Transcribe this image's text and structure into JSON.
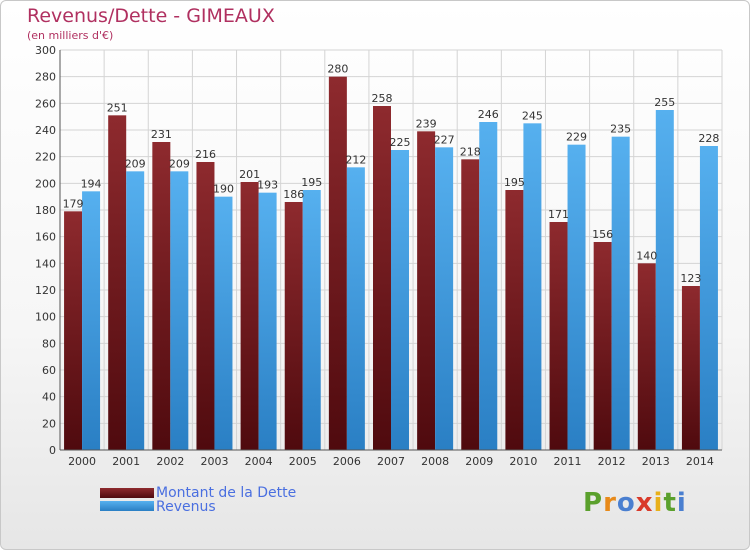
{
  "header": {
    "title": "Revenus/Dette - GIMEAUX",
    "subtitle": "(en milliers d'€)"
  },
  "legend": {
    "items": [
      {
        "label": "Montant de la Dette"
      },
      {
        "label": "Revenus"
      }
    ]
  },
  "logo": {
    "text": "Proxiti",
    "letters": [
      "P",
      "r",
      "o",
      "x",
      "i",
      "t",
      "i"
    ],
    "colors": [
      "#5aa02c",
      "#e88a1a",
      "#4a7fd0",
      "#d93a2a",
      "#e8b01a",
      "#5aa02c",
      "#4a7fd0"
    ]
  },
  "chart_data": {
    "type": "bar",
    "categories": [
      "2000",
      "2001",
      "2002",
      "2003",
      "2004",
      "2005",
      "2006",
      "2007",
      "2008",
      "2009",
      "2010",
      "2011",
      "2012",
      "2013",
      "2014"
    ],
    "series": [
      {
        "name": "Montant de la Dette",
        "color": "#7a1a1e",
        "values": [
          179,
          251,
          231,
          216,
          201,
          186,
          280,
          258,
          239,
          218,
          195,
          171,
          156,
          140,
          123
        ]
      },
      {
        "name": "Revenus",
        "color": "#3d9be0",
        "values": [
          194,
          209,
          209,
          190,
          193,
          195,
          212,
          225,
          227,
          246,
          245,
          229,
          235,
          255,
          228
        ]
      }
    ],
    "yticks": [
      "0",
      "20",
      "40",
      "60",
      "80",
      "100",
      "120",
      "140",
      "160",
      "180",
      "200",
      "220",
      "240",
      "260",
      "280",
      "300"
    ],
    "ylim": [
      0,
      300
    ],
    "grid": true
  }
}
